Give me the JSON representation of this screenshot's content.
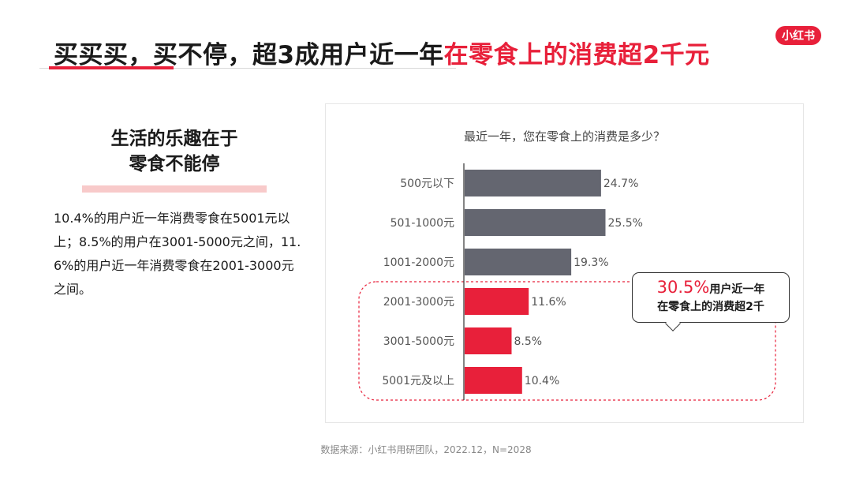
{
  "header": {
    "title_plain": "买买买，买不停，超3成用户近一年",
    "title_accent": "在零食上的消费超2千元",
    "logo_text": "小红书"
  },
  "left_panel": {
    "heading_line1": "生活的乐趣在于",
    "heading_line2": "零食不能停",
    "body": "10.4%的用户近一年消费零食在5001元以上；8.5%的用户在3001-5000元之间，11.6%的用户近一年消费零食在2001-3000元之间。"
  },
  "callout": {
    "percent": "30.5%",
    "text_line1": "用户近一年",
    "text_line2": "在零食上的消费超2千"
  },
  "footer": {
    "source": "数据来源：小红书用研团队，2022.12，N=2028"
  },
  "colors": {
    "accent": "#e8203a",
    "gray_bar": "#646670"
  },
  "chart_data": {
    "type": "bar",
    "orientation": "horizontal",
    "title": "最近一年，您在零食上的消费是多少？",
    "categories": [
      "500元以下",
      "501-1000元",
      "1001-2000元",
      "2001-3000元",
      "3001-5000元",
      "5001元及以上"
    ],
    "values": [
      24.7,
      25.5,
      19.3,
      11.6,
      8.5,
      10.4
    ],
    "value_labels": [
      "24.7%",
      "25.5%",
      "19.3%",
      "11.6%",
      "8.5%",
      "10.4%"
    ],
    "highlight": [
      false,
      false,
      false,
      true,
      true,
      true
    ],
    "xlim": [
      0,
      30
    ],
    "grid": false,
    "legend": "none"
  }
}
